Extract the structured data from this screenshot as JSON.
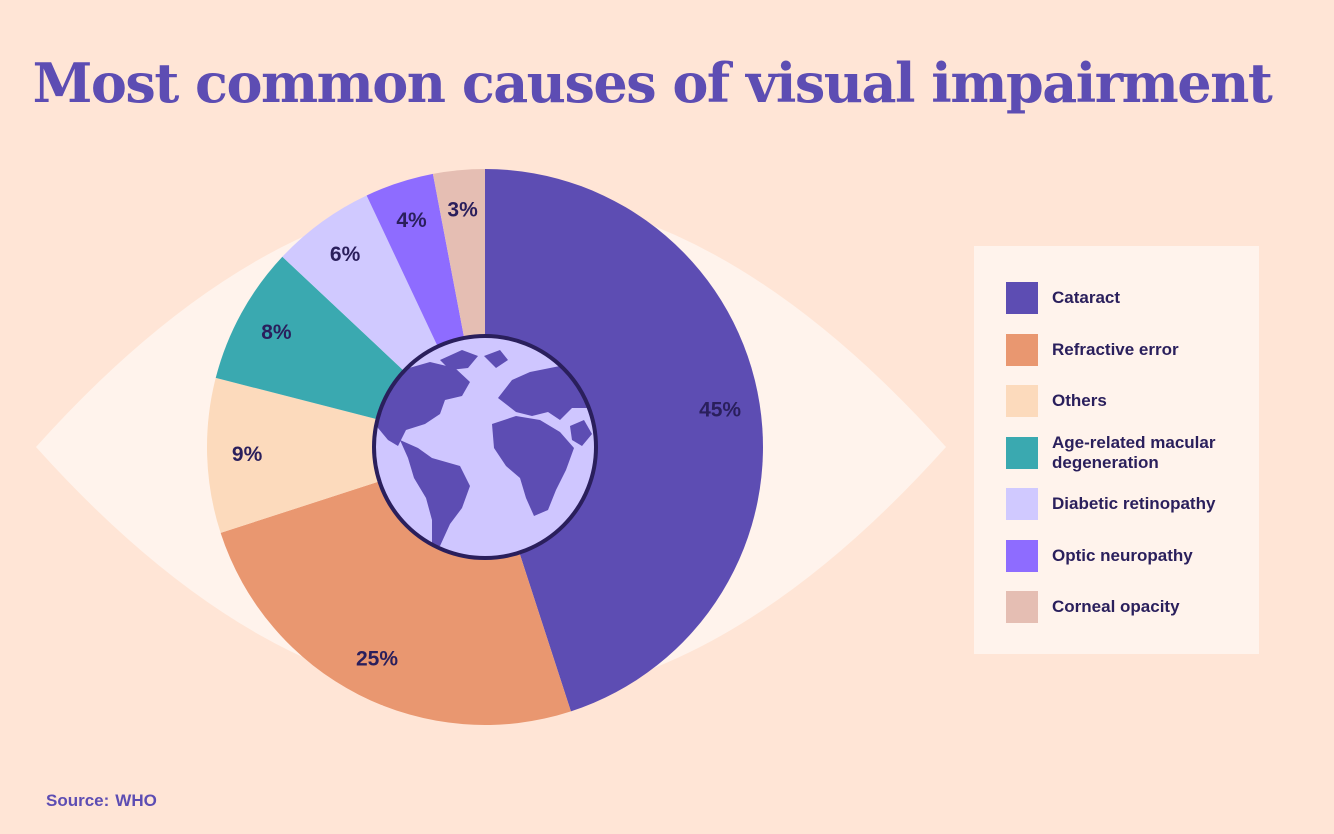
{
  "title": "Most common causes of visual impairment",
  "source": {
    "label": "Source:",
    "value": "WHO"
  },
  "colors": {
    "background": "#ffe5d6",
    "eye": "#fff3ec",
    "globe_ocean": "#cfc6ff",
    "globe_land": "#5d4db3",
    "globe_outline": "#2a1f5c",
    "title": "#5d4db3"
  },
  "center_icon": "globe-icon",
  "chart_data": {
    "type": "pie",
    "title": "Most common causes of visual impairment",
    "slices": [
      {
        "label": "Cataract",
        "value": 45,
        "display": "45%",
        "color": "#5d4db3"
      },
      {
        "label": "Refractive error",
        "value": 25,
        "display": "25%",
        "color": "#e99770"
      },
      {
        "label": "Others",
        "value": 9,
        "display": "9%",
        "color": "#fcdabc"
      },
      {
        "label": "Age-related macular degeneration",
        "value": 8,
        "display": "8%",
        "color": "#3aa9b0"
      },
      {
        "label": "Diabetic retinopathy",
        "value": 6,
        "display": "6%",
        "color": "#d0c9ff"
      },
      {
        "label": "Optic neuropathy",
        "value": 4,
        "display": "4%",
        "color": "#8e6cff"
      },
      {
        "label": "Corneal opacity",
        "value": 3,
        "display": "3%",
        "color": "#e5beb3"
      }
    ],
    "legend_position": "right"
  }
}
